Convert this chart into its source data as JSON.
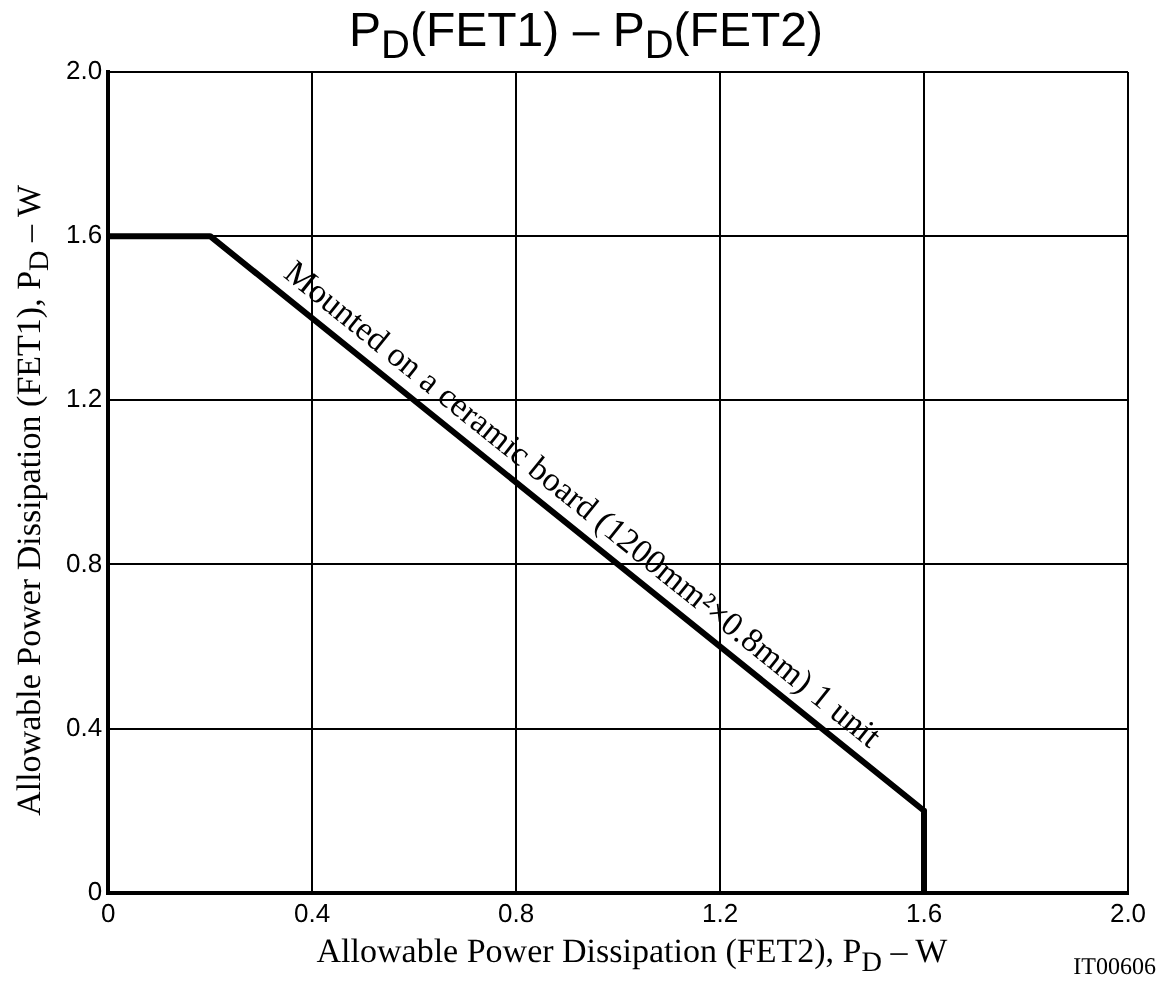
{
  "chart_data": {
    "type": "line",
    "title": "P$_{D}$(FET1)  –  P$_{D}$(FET2)",
    "xlabel": "Allowable Power Dissipation (FET2), P$_{D}$  –  W",
    "ylabel": "Allowable Power Dissipation (FET1), P$_{D}$  –  W",
    "x": [
      0,
      0.2,
      1.6,
      1.6
    ],
    "series": [
      {
        "color": "#000000",
        "values": [
          1.6,
          1.6,
          0.2,
          0
        ]
      }
    ],
    "xlim": [
      0,
      2.0
    ],
    "xticks": [
      0,
      0.4,
      0.8,
      1.2,
      1.6,
      {
        "value": 2,
        "label": "2.0"
      }
    ],
    "ylim": [
      0,
      2.0
    ],
    "yticks": [
      0,
      0.4,
      0.8,
      1.2,
      1.6,
      {
        "value": 2,
        "label": "2.0"
      }
    ],
    "grid": true,
    "legend": false,
    "marker": "none",
    "line_style": "solid",
    "annotations": [
      {
        "text": "Mounted on a ceramic board (1200mm²×0.8mm) 1 unit",
        "x": 0.9,
        "y": 0.9
      },
      "IT00606"
    ]
  }
}
